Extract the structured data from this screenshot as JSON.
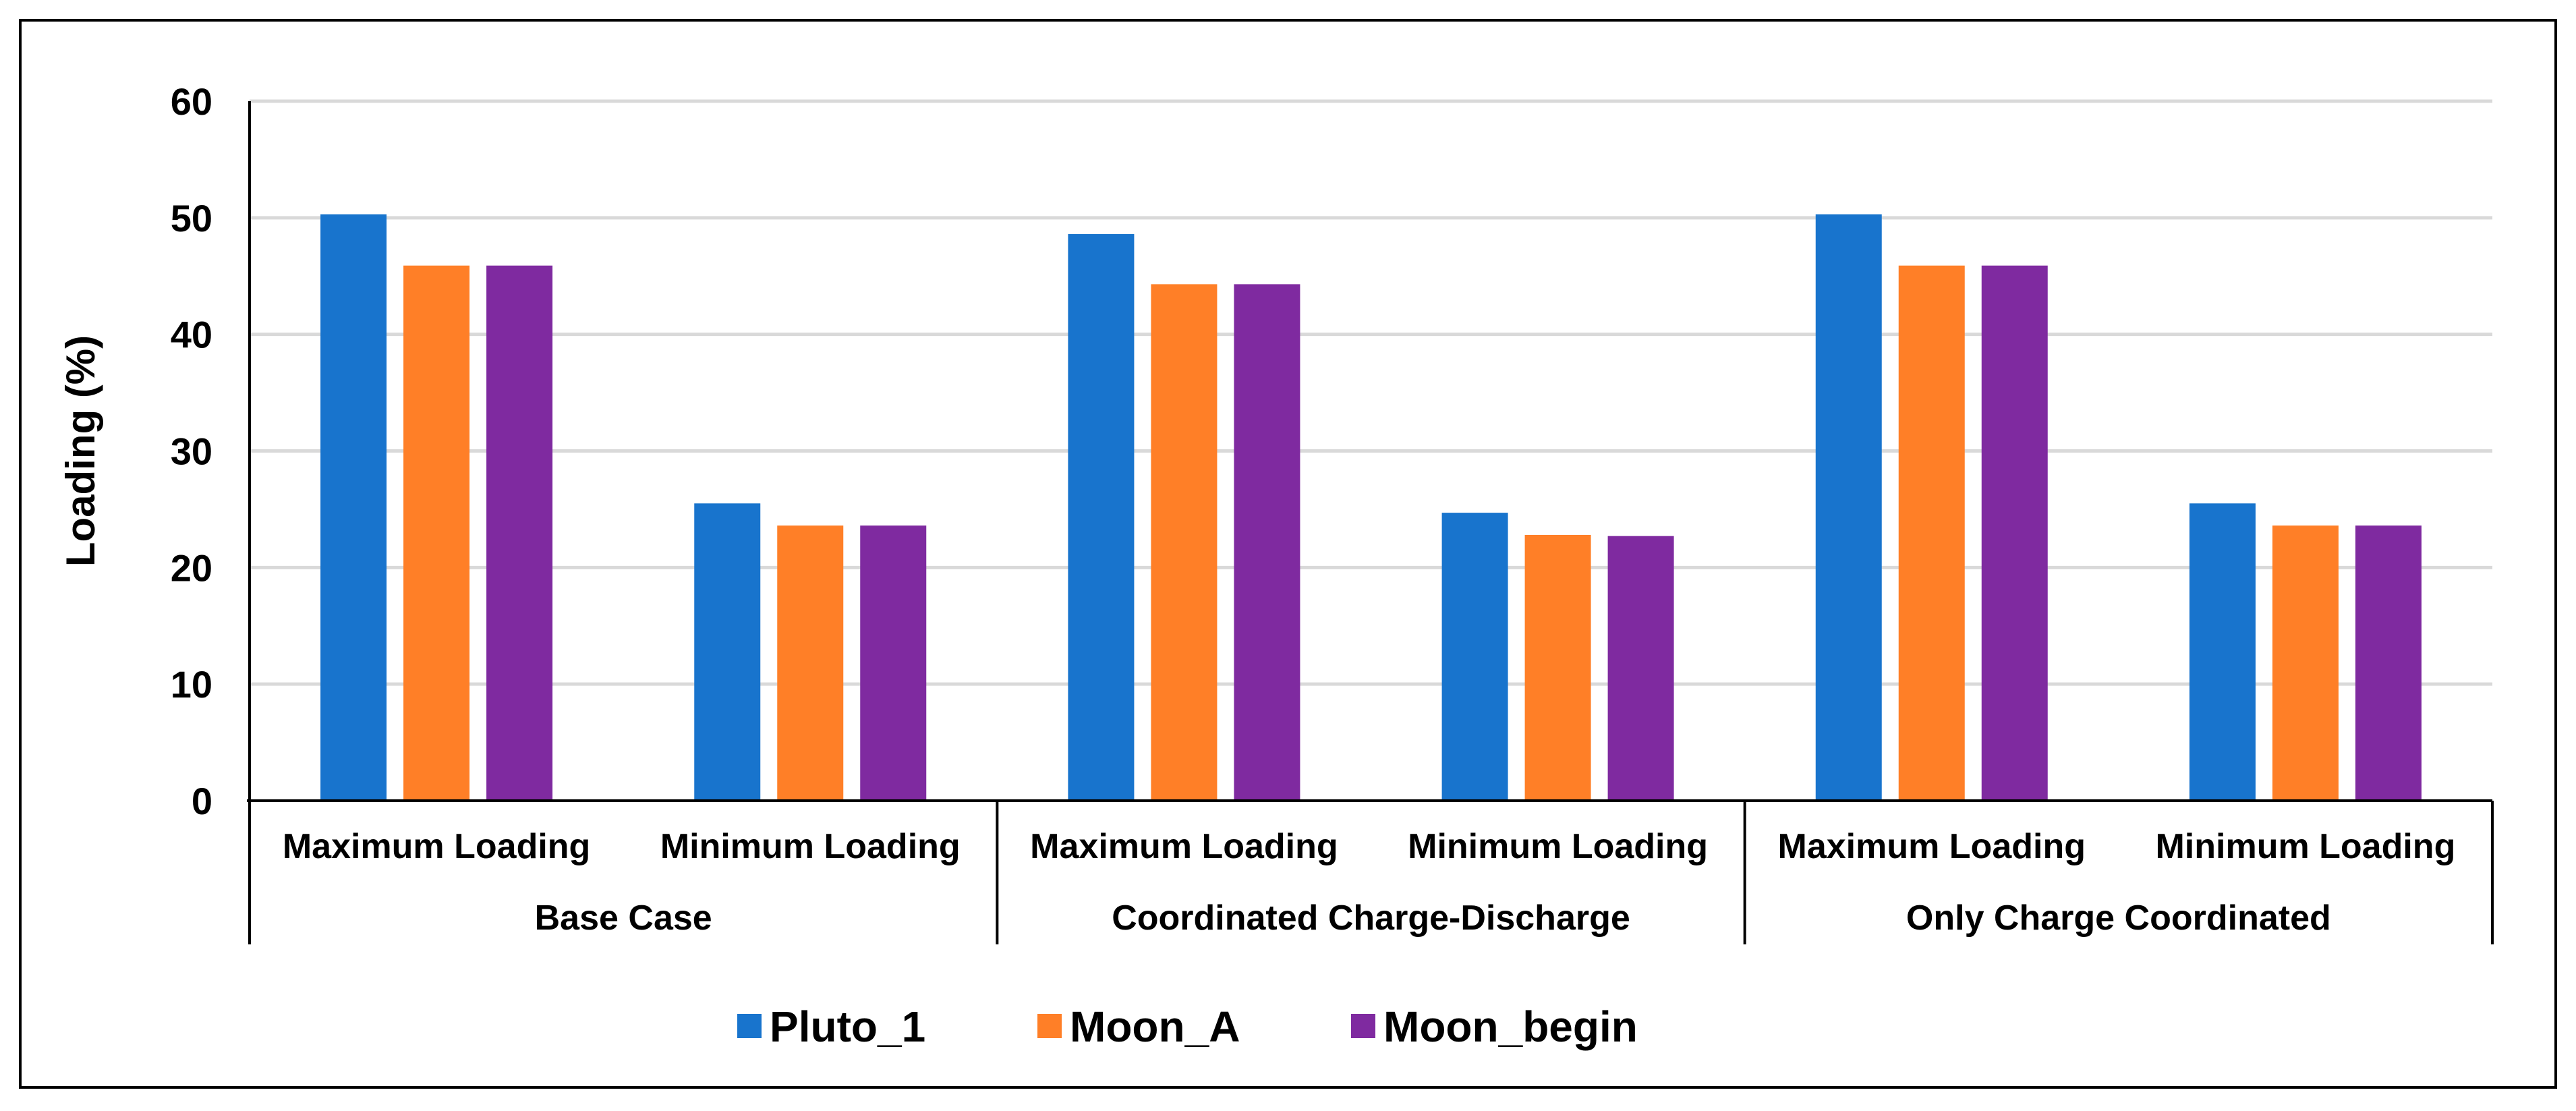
{
  "chart_data": {
    "type": "bar",
    "title": "",
    "xlabel": "",
    "ylabel": "Loading (%)",
    "ylim": [
      0,
      60
    ],
    "yticks": [
      0,
      10,
      20,
      30,
      40,
      50,
      60
    ],
    "grid": true,
    "legend_position": "bottom",
    "groups": [
      {
        "label": "Base Case",
        "categories": [
          "Maximum Loading",
          "Minimum Loading"
        ]
      },
      {
        "label": "Coordinated Charge-Discharge",
        "categories": [
          "Maximum Loading",
          "Minimum Loading"
        ]
      },
      {
        "label": "Only Charge Coordinated",
        "categories": [
          "Maximum Loading",
          "Minimum Loading"
        ]
      }
    ],
    "categories": [
      "Maximum Loading",
      "Minimum Loading",
      "Maximum Loading",
      "Minimum Loading",
      "Maximum Loading",
      "Minimum Loading"
    ],
    "series": [
      {
        "name": "Pluto_1",
        "color": "#1874CD",
        "values": [
          50.3,
          25.5,
          48.6,
          24.7,
          50.3,
          25.5
        ]
      },
      {
        "name": "Moon_A",
        "color": "#FF7F27",
        "values": [
          45.9,
          23.6,
          44.3,
          22.8,
          45.9,
          23.6
        ]
      },
      {
        "name": "Moon_begin",
        "color": "#7F2AA0",
        "values": [
          45.9,
          23.6,
          44.3,
          22.7,
          45.9,
          23.6
        ]
      }
    ]
  }
}
